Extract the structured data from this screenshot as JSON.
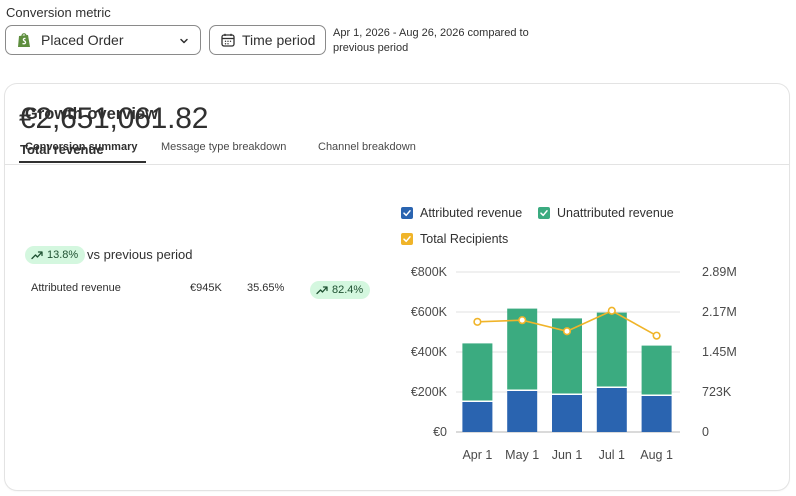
{
  "header": {
    "metric_label": "Conversion metric",
    "metric_value": "Placed Order",
    "time_button": "Time period",
    "period_text": "Apr 1, 2026 - Aug 26, 2026 compared to previous period"
  },
  "card": {
    "title": "Growth overview",
    "tabs": [
      {
        "label": "Conversion summary",
        "active": true
      },
      {
        "label": "Message type breakdown",
        "active": false
      },
      {
        "label": "Channel breakdown",
        "active": false
      }
    ]
  },
  "summary": {
    "total_revenue": "€2,651,061.82",
    "total_revenue_label": "Total revenue",
    "change": "13.8%",
    "vs_text": "vs previous period",
    "row": {
      "label": "Attributed revenue",
      "value": "€945K",
      "share": "35.65%",
      "change": "82.4%"
    }
  },
  "colors": {
    "attributed": "#2a64b0",
    "unattributed": "#3bab80",
    "recipients": "#f0b429",
    "badge_bg": "#d4f7df"
  },
  "chart_data": {
    "type": "bar",
    "stacked": true,
    "categories": [
      "Apr 1",
      "May 1",
      "Jun 1",
      "Jul 1",
      "Aug 1"
    ],
    "series": [
      {
        "name": "Attributed revenue",
        "values": [
          150000,
          205000,
          185000,
          220000,
          180000
        ]
      },
      {
        "name": "Unattributed revenue",
        "values": [
          293000,
          412000,
          383000,
          377000,
          252000
        ]
      },
      {
        "name": "Total Recipients",
        "type": "line",
        "axis": "right",
        "values": [
          1990000,
          2020000,
          1820000,
          2190000,
          1740000
        ]
      }
    ],
    "ylim": [
      0,
      800000
    ],
    "y_ticks": [
      "€0",
      "€200K",
      "€400K",
      "€600K",
      "€800K"
    ],
    "y2lim": [
      0,
      2890000
    ],
    "y2_ticks": [
      "0",
      "723K",
      "1.45M",
      "2.17M",
      "2.89M"
    ],
    "legend": "top",
    "grid": true
  }
}
